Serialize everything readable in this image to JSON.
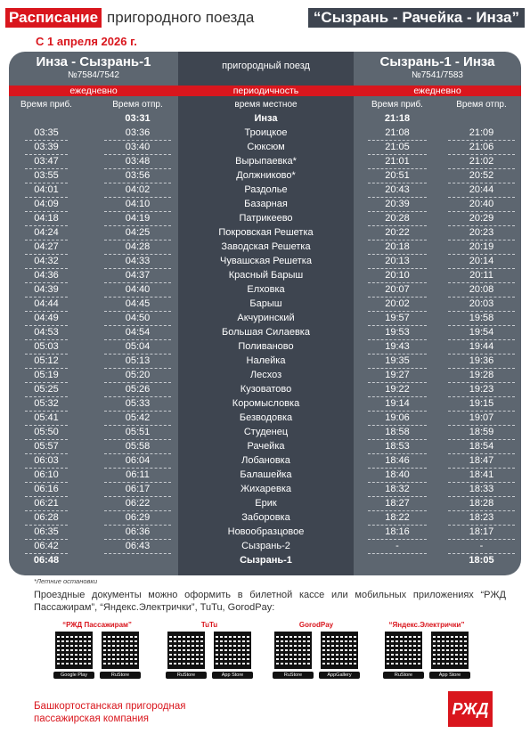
{
  "title": {
    "red": "Расписание",
    "middle": "пригородного поезда",
    "route": "“Сызрань - Рачейка - Инза”"
  },
  "date": "С 1 апреля 2026 г.",
  "header": {
    "left_route": "Инза - Сызрань-1",
    "left_num": "№7584/7542",
    "center": "пригородный поезд",
    "right_route": "Сызрань-1 - Инза",
    "right_num": "№7541/7583",
    "left_period": "ежедневно",
    "center_period": "периодичность",
    "right_period": "ежедневно",
    "col_arr_left": "Время приб.",
    "col_dep_left": "Время отпр.",
    "col_local": "время местное",
    "col_arr_right": "Время приб.",
    "col_dep_right": "Время отпр."
  },
  "rows": [
    {
      "a": "",
      "d": "03:31",
      "s": "Инза",
      "ra": "21:18",
      "rd": ""
    },
    {
      "a": "03:35",
      "d": "03:36",
      "s": "Троицкое",
      "ra": "21:08",
      "rd": "21:09"
    },
    {
      "a": "03:39",
      "d": "03:40",
      "s": "Сюксюм",
      "ra": "21:05",
      "rd": "21:06"
    },
    {
      "a": "03:47",
      "d": "03:48",
      "s": "Вырыпаевка*",
      "ra": "21:01",
      "rd": "21:02"
    },
    {
      "a": "03:55",
      "d": "03:56",
      "s": "Должниково*",
      "ra": "20:51",
      "rd": "20:52"
    },
    {
      "a": "04:01",
      "d": "04:02",
      "s": "Раздолье",
      "ra": "20:43",
      "rd": "20:44"
    },
    {
      "a": "04:09",
      "d": "04:10",
      "s": "Базарная",
      "ra": "20:39",
      "rd": "20:40"
    },
    {
      "a": "04:18",
      "d": "04:19",
      "s": "Патрикеево",
      "ra": "20:28",
      "rd": "20:29"
    },
    {
      "a": "04:24",
      "d": "04:25",
      "s": "Покровская Решетка",
      "ra": "20:22",
      "rd": "20:23"
    },
    {
      "a": "04:27",
      "d": "04:28",
      "s": "Заводская Решетка",
      "ra": "20:18",
      "rd": "20:19"
    },
    {
      "a": "04:32",
      "d": "04:33",
      "s": "Чувашская Решетка",
      "ra": "20:13",
      "rd": "20:14"
    },
    {
      "a": "04:36",
      "d": "04:37",
      "s": "Красный Барыш",
      "ra": "20:10",
      "rd": "20:11"
    },
    {
      "a": "04:39",
      "d": "04:40",
      "s": "Елховка",
      "ra": "20:07",
      "rd": "20:08"
    },
    {
      "a": "04:44",
      "d": "04:45",
      "s": "Барыш",
      "ra": "20:02",
      "rd": "20:03"
    },
    {
      "a": "04:49",
      "d": "04:50",
      "s": "Акчуринский",
      "ra": "19:57",
      "rd": "19:58"
    },
    {
      "a": "04:53",
      "d": "04:54",
      "s": "Большая Силаевка",
      "ra": "19:53",
      "rd": "19:54"
    },
    {
      "a": "05:03",
      "d": "05:04",
      "s": "Поливаново",
      "ra": "19:43",
      "rd": "19:44"
    },
    {
      "a": "05:12",
      "d": "05:13",
      "s": "Налейка",
      "ra": "19:35",
      "rd": "19:36"
    },
    {
      "a": "05:19",
      "d": "05:20",
      "s": "Лесхоз",
      "ra": "19:27",
      "rd": "19:28"
    },
    {
      "a": "05:25",
      "d": "05:26",
      "s": "Кузоватово",
      "ra": "19:22",
      "rd": "19:23"
    },
    {
      "a": "05:32",
      "d": "05:33",
      "s": "Коромысловка",
      "ra": "19:14",
      "rd": "19:15"
    },
    {
      "a": "05:41",
      "d": "05:42",
      "s": "Безводовка",
      "ra": "19:06",
      "rd": "19:07"
    },
    {
      "a": "05:50",
      "d": "05:51",
      "s": "Студенец",
      "ra": "18:58",
      "rd": "18:59"
    },
    {
      "a": "05:57",
      "d": "05:58",
      "s": "Рачейка",
      "ra": "18:53",
      "rd": "18:54"
    },
    {
      "a": "06:03",
      "d": "06:04",
      "s": "Лобановка",
      "ra": "18:46",
      "rd": "18:47"
    },
    {
      "a": "06:10",
      "d": "06:11",
      "s": "Балашейка",
      "ra": "18:40",
      "rd": "18:41"
    },
    {
      "a": "06:16",
      "d": "06:17",
      "s": "Жихаревка",
      "ra": "18:32",
      "rd": "18:33"
    },
    {
      "a": "06:21",
      "d": "06:22",
      "s": "Ерик",
      "ra": "18:27",
      "rd": "18:28"
    },
    {
      "a": "06:28",
      "d": "06:29",
      "s": "Заборовка",
      "ra": "18:22",
      "rd": "18:23"
    },
    {
      "a": "06:35",
      "d": "06:36",
      "s": "Новообразцовое",
      "ra": "18:16",
      "rd": "18:17"
    },
    {
      "a": "06:42",
      "d": "06:43",
      "s": "Сызрань-2",
      "ra": "-",
      "rd": "-"
    },
    {
      "a": "06:48",
      "d": "",
      "s": "Сызрань-1",
      "ra": "",
      "rd": "18:05"
    }
  ],
  "note": "*Летние остановки",
  "docs_text": "Проездные документы можно оформить в билетной кассе или мобильных приложениях “РЖД Пассажирам”, “Яндекс.Электрички”, TuTu, GorodPay:",
  "apps": [
    {
      "name": "“РЖД Пассажирам”",
      "badges": [
        "Google Play",
        "RuStore"
      ]
    },
    {
      "name": "TuTu",
      "badges": [
        "RuStore",
        "App Store"
      ]
    },
    {
      "name": "GorodPay",
      "badges": [
        "RuStore",
        "AppGallery"
      ]
    },
    {
      "name": "“Яндекс.Электрички”",
      "badges": [
        "RuStore",
        "App Store"
      ]
    }
  ],
  "company": "Башкортостанская пригородная пассажирская компания",
  "logo": "РЖД",
  "colors": {
    "red": "#d9161d",
    "card": "#5d6670",
    "center": "#3e4550"
  }
}
